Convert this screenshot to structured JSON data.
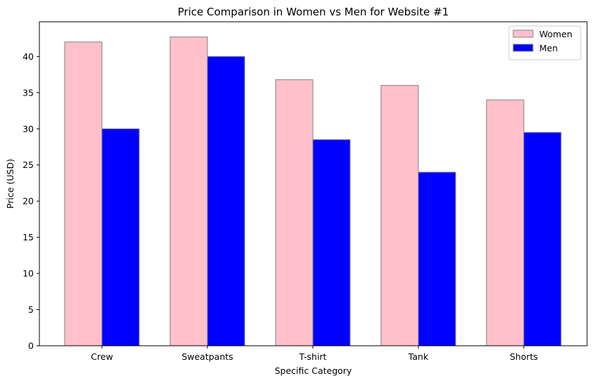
{
  "chart_data": {
    "type": "bar",
    "title": "Price Comparison in Women vs Men for Website #1",
    "xlabel": "Specific Category",
    "ylabel": "Price (USD)",
    "categories": [
      "Crew",
      "Sweatpants",
      "T-shirt",
      "Tank",
      "Shorts"
    ],
    "series": [
      {
        "name": "Women",
        "values": [
          42.0,
          42.7,
          36.8,
          36.0,
          34.0
        ],
        "color": "#ffc0cb"
      },
      {
        "name": "Men",
        "values": [
          30.0,
          40.0,
          28.5,
          24.0,
          29.5
        ],
        "color": "#0000ff"
      }
    ],
    "ylim": [
      0,
      44.8
    ],
    "yticks": [
      0,
      5,
      10,
      15,
      20,
      25,
      30,
      35,
      40
    ],
    "bar_edge_color": "#808080",
    "grid": false,
    "legend_position": "top-right"
  }
}
